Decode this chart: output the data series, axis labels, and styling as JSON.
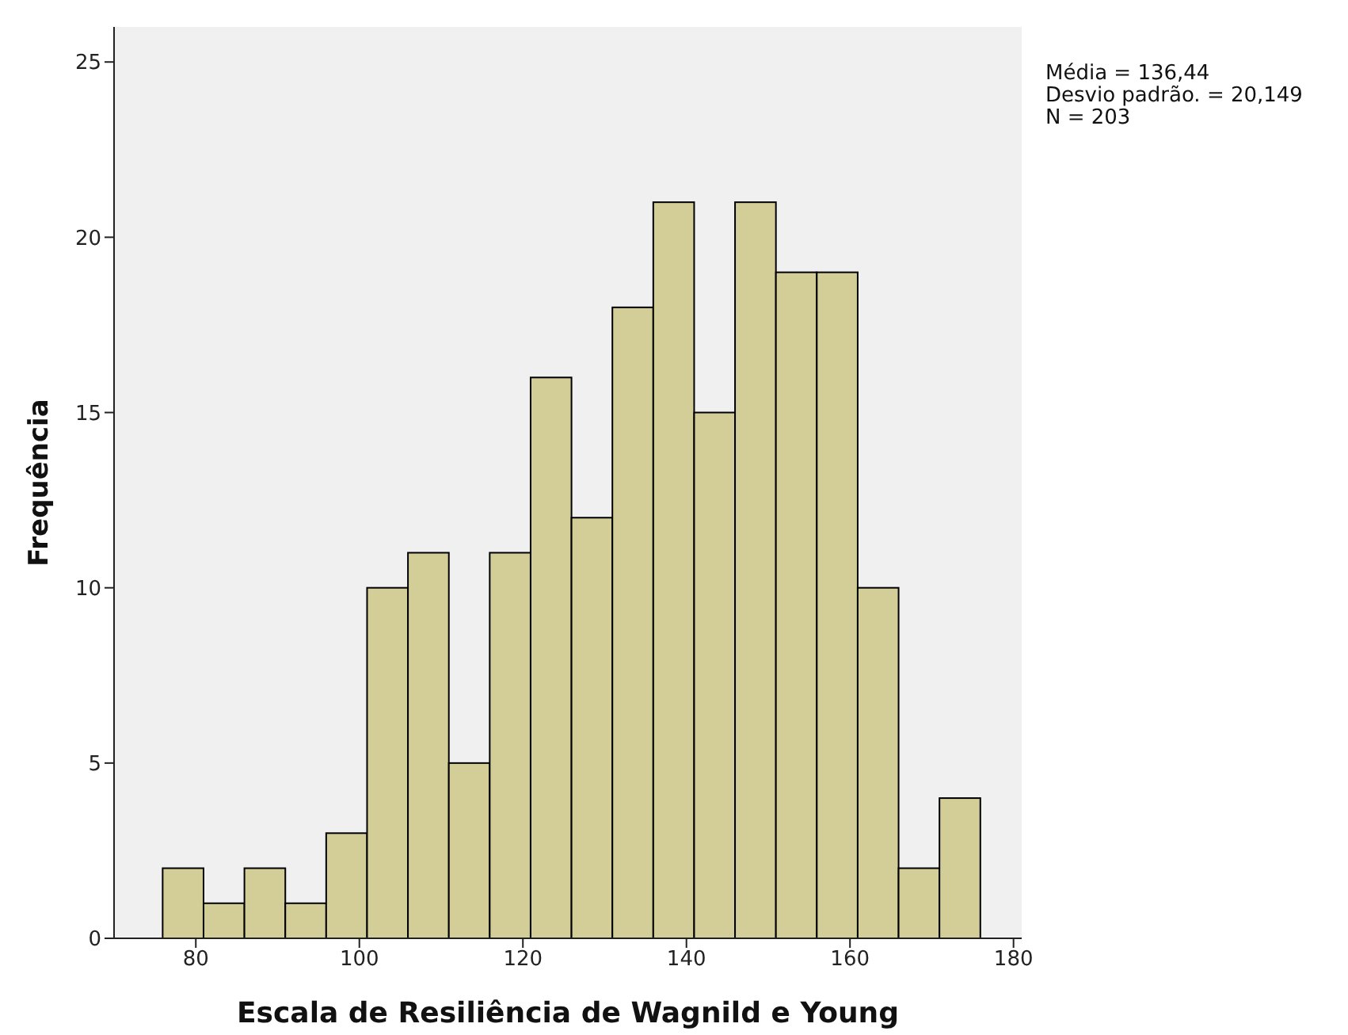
{
  "chart_data": {
    "type": "histogram",
    "xlabel": "Escala de Resiliência de Wagnild e Young",
    "ylabel": "Frequência",
    "bins": [
      76,
      81,
      86,
      91,
      96,
      101,
      106,
      111,
      116,
      121,
      126,
      131,
      136,
      141,
      146,
      151,
      156,
      161,
      166,
      171,
      176
    ],
    "values": [
      2,
      1,
      2,
      1,
      3,
      10,
      11,
      5,
      11,
      16,
      12,
      18,
      21,
      15,
      21,
      19,
      19,
      10,
      2,
      4
    ],
    "color": "#d3ce97",
    "xlim": [
      70,
      181
    ],
    "xticks": [
      80,
      100,
      120,
      140,
      160,
      180
    ],
    "ylim": [
      0,
      26
    ],
    "yticks": [
      0,
      5,
      10,
      15,
      20,
      25
    ],
    "annotations": [
      "Média = 136,44",
      "Desvio padrão. = 20,149",
      "N = 203"
    ]
  }
}
